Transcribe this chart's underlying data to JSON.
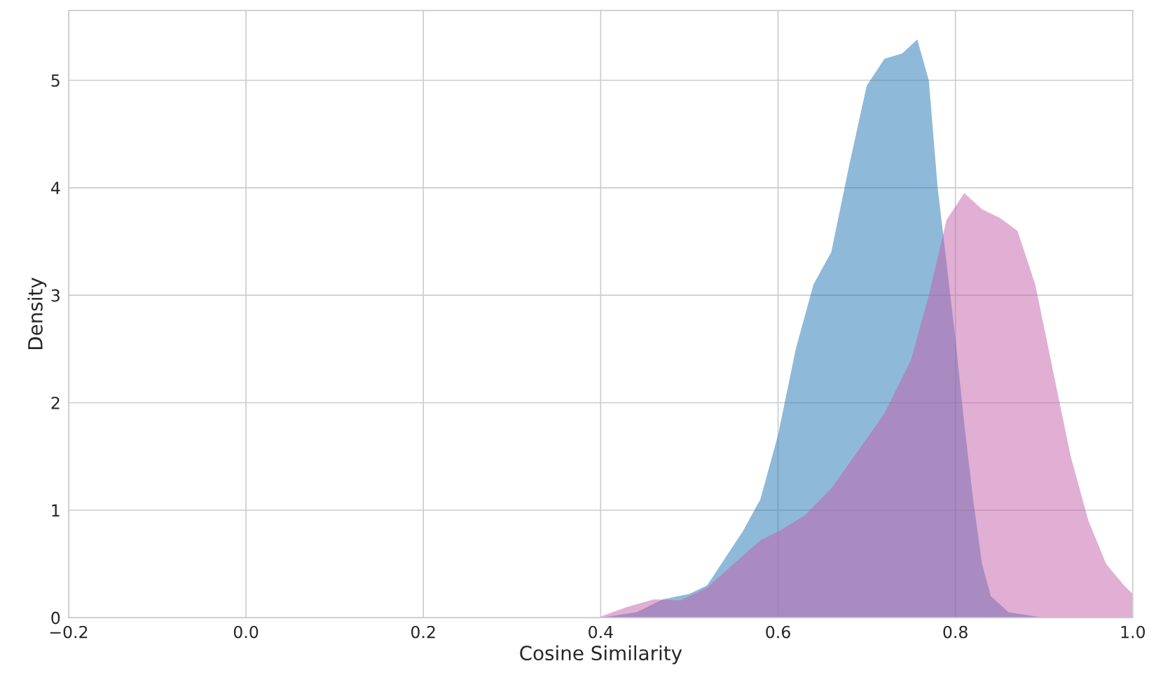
{
  "chart_data": {
    "type": "area",
    "xlabel": "Cosine Similarity",
    "ylabel": "Density",
    "xlim": [
      -0.2,
      1.0
    ],
    "xticks": [
      {
        "value": -0.2,
        "label": "−0.2"
      },
      {
        "value": 0.0,
        "label": "0.0"
      },
      {
        "value": 0.2,
        "label": "0.2"
      },
      {
        "value": 0.4,
        "label": "0.4"
      },
      {
        "value": 0.6,
        "label": "0.6"
      },
      {
        "value": 0.8,
        "label": "0.8"
      },
      {
        "value": 1.0,
        "label": "1.0"
      }
    ],
    "ylim": [
      0,
      5.65
    ],
    "yticks": [
      0,
      1,
      2,
      3,
      4,
      5
    ],
    "grid": true,
    "legend": false,
    "series": [
      {
        "color": "#1f73b1",
        "x": [
          0.4,
          0.44,
          0.47,
          0.5,
          0.52,
          0.54,
          0.56,
          0.58,
          0.6,
          0.62,
          0.64,
          0.66,
          0.68,
          0.7,
          0.72,
          0.74,
          0.757,
          0.77,
          0.78,
          0.79,
          0.8,
          0.81,
          0.82,
          0.83,
          0.84,
          0.86,
          0.9,
          1.0
        ],
        "values": [
          0,
          0.05,
          0.17,
          0.22,
          0.3,
          0.55,
          0.8,
          1.1,
          1.7,
          2.5,
          3.1,
          3.4,
          4.2,
          4.95,
          5.2,
          5.25,
          5.38,
          5.0,
          4.0,
          3.3,
          2.6,
          1.8,
          1.1,
          0.5,
          0.2,
          0.05,
          0.0,
          0.0
        ]
      },
      {
        "color": "#c35da9",
        "x": [
          0.4,
          0.43,
          0.46,
          0.49,
          0.52,
          0.55,
          0.58,
          0.6,
          0.63,
          0.66,
          0.69,
          0.72,
          0.75,
          0.77,
          0.79,
          0.81,
          0.83,
          0.85,
          0.87,
          0.89,
          0.91,
          0.93,
          0.95,
          0.97,
          0.99,
          1.0
        ],
        "values": [
          0.01,
          0.1,
          0.17,
          0.16,
          0.28,
          0.5,
          0.72,
          0.8,
          0.95,
          1.2,
          1.55,
          1.9,
          2.4,
          3.0,
          3.7,
          3.95,
          3.8,
          3.72,
          3.6,
          3.1,
          2.3,
          1.5,
          0.9,
          0.5,
          0.3,
          0.22
        ]
      }
    ]
  }
}
